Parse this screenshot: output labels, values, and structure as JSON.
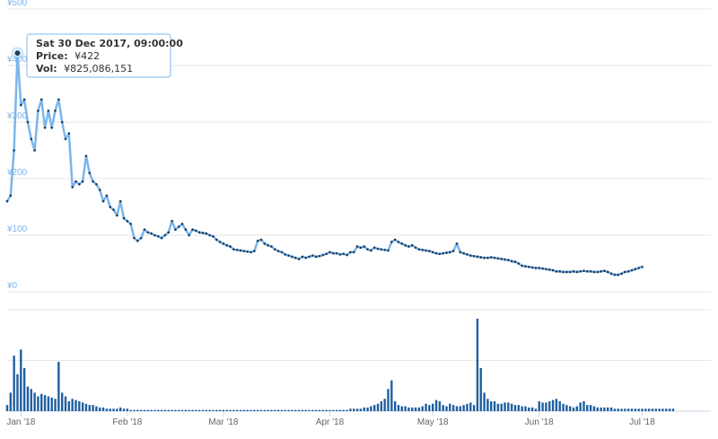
{
  "colors": {
    "line": "#7cb5ec",
    "dots": "#1c3d5a",
    "bars": "#1f5fa0",
    "grid": "#e6e6e6",
    "axis_label": "#7cb5ec"
  },
  "tooltip": {
    "date": "Sat 30 Dec 2017, 09:00:00",
    "price_label": "Price:",
    "price_value": "¥422",
    "vol_label": "Vol:",
    "vol_value": "¥825,086,151"
  },
  "chart_data": {
    "type": "line",
    "price_axis": {
      "ticks": [
        "¥0",
        "¥100",
        "¥200",
        "¥300",
        "¥400",
        "¥500"
      ],
      "ylim": [
        0,
        500
      ]
    },
    "x_ticks": [
      "Jan '18",
      "Feb '18",
      "Mar '18",
      "Apr '18",
      "May '18",
      "Jun '18",
      "Jul '18"
    ],
    "x_tick_days": [
      0,
      31,
      59,
      90,
      120,
      151,
      181
    ],
    "x_range_days": [
      -4,
      201
    ],
    "series": [
      {
        "series_role": "price",
        "x_start_day": -4,
        "values": [
          160,
          170,
          250,
          422,
          330,
          340,
          300,
          270,
          250,
          320,
          340,
          290,
          320,
          290,
          320,
          340,
          300,
          270,
          280,
          185,
          195,
          190,
          195,
          240,
          210,
          195,
          190,
          180,
          160,
          170,
          150,
          145,
          135,
          160,
          130,
          125,
          120,
          95,
          90,
          95,
          110,
          105,
          103,
          100,
          98,
          95,
          100,
          105,
          125,
          110,
          115,
          120,
          110,
          100,
          110,
          108,
          105,
          104,
          103,
          100,
          98,
          92,
          88,
          85,
          82,
          80,
          75,
          74,
          73,
          72,
          71,
          70,
          72,
          90,
          92,
          85,
          82,
          80,
          75,
          72,
          70,
          66,
          64,
          62,
          60,
          58,
          62,
          60,
          62,
          64,
          62,
          63,
          65,
          67,
          70,
          68,
          68,
          66,
          67,
          65,
          70,
          70,
          80,
          78,
          80,
          75,
          73,
          78,
          76,
          75,
          74,
          73,
          88,
          92,
          88,
          85,
          82,
          80,
          82,
          78,
          75,
          74,
          73,
          72,
          70,
          68,
          67,
          68,
          69,
          70,
          72,
          85,
          70,
          68,
          66,
          64,
          63,
          62,
          61,
          60,
          60,
          61,
          60,
          59,
          58,
          57,
          56,
          54,
          53,
          50,
          46,
          45,
          44,
          43,
          42,
          42,
          41,
          40,
          39,
          38,
          36,
          36,
          35,
          35,
          35,
          36,
          35,
          36,
          37,
          36,
          36,
          35,
          35,
          36,
          37,
          35,
          32,
          30,
          30,
          32,
          35,
          36,
          38,
          40,
          42,
          44
        ]
      },
      {
        "series_role": "volume",
        "x_start_day": -4,
        "values": [
          5,
          15,
          45,
          30,
          50,
          35,
          20,
          18,
          15,
          12,
          14,
          13,
          12,
          11,
          10,
          40,
          15,
          12,
          8,
          10,
          9,
          8,
          7,
          6,
          5,
          5,
          4,
          3,
          3,
          2,
          2,
          2,
          2,
          3,
          2,
          2,
          1,
          1,
          1,
          1,
          1,
          1,
          1,
          1,
          1,
          1,
          1,
          1,
          1,
          1,
          1,
          1,
          1,
          1,
          1,
          1,
          1,
          1,
          1,
          1,
          1,
          1,
          1,
          1,
          1,
          1,
          1,
          1,
          1,
          1,
          1,
          1,
          1,
          1,
          1,
          1,
          1,
          1,
          1,
          1,
          1,
          1,
          1,
          1,
          1,
          1,
          1,
          1,
          1,
          1,
          1,
          1,
          1,
          1,
          1,
          1,
          1,
          1,
          1,
          1,
          2,
          2,
          2,
          2,
          3,
          3,
          4,
          5,
          6,
          8,
          10,
          18,
          25,
          8,
          5,
          4,
          4,
          3,
          3,
          3,
          3,
          4,
          6,
          5,
          6,
          9,
          8,
          5,
          4,
          6,
          5,
          4,
          4,
          5,
          6,
          7,
          5,
          75,
          35,
          15,
          10,
          8,
          8,
          6,
          6,
          7,
          7,
          6,
          5,
          5,
          4,
          4,
          3,
          3,
          2,
          8,
          7,
          7,
          8,
          9,
          10,
          8,
          6,
          5,
          4,
          3,
          4,
          7,
          8,
          5,
          5,
          4,
          3,
          3,
          3,
          3,
          3,
          2,
          2,
          2,
          2,
          2,
          2,
          2,
          2,
          2,
          2,
          2,
          2,
          2,
          2,
          2,
          2,
          2,
          2
        ]
      }
    ]
  }
}
